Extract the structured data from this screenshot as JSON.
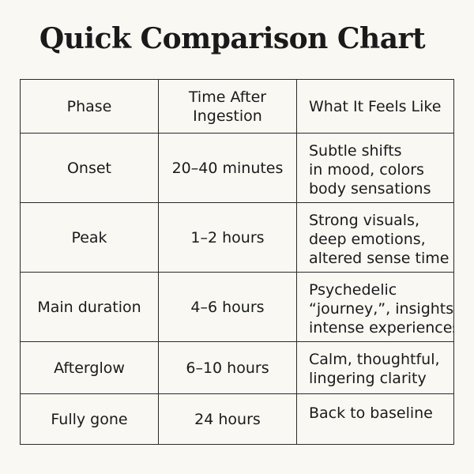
{
  "title": "Quick Comparison Chart",
  "headers": [
    "Phase",
    "Time After Ingestion",
    "What It Feels Like"
  ],
  "rows": [
    {
      "phase": "Onset",
      "time": "20–40 minutes",
      "feels": [
        "Subtle shifts",
        "in mood, colors",
        "body sensations"
      ]
    },
    {
      "phase": "Peak",
      "time": "1–2 hours",
      "feels": [
        "Strong visuals,",
        "deep emotions,",
        "altered sense time"
      ]
    },
    {
      "phase": "Main duration",
      "time": "4–6 hours",
      "feels": [
        "Psychedelic",
        "“journey,”, insights,",
        "intense experiences"
      ]
    },
    {
      "phase": "Afterglow",
      "time": "6–10 hours",
      "feels": [
        "Calm, thoughtful,",
        "lingering clarity"
      ]
    },
    {
      "phase": "Fully gone",
      "time": "24 hours",
      "feels": [
        "Back to baseline"
      ]
    }
  ]
}
